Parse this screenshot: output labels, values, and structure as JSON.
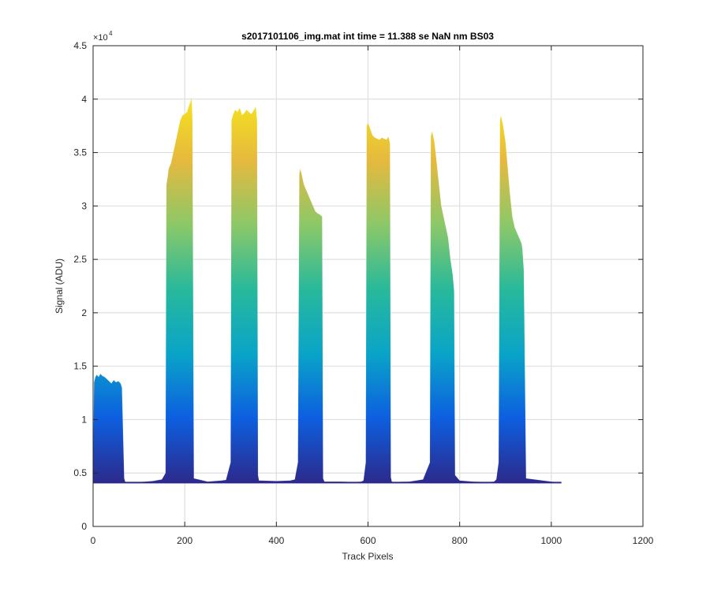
{
  "chart_data": {
    "type": "area",
    "title": "s2017101106_img.mat int time = 11.388 se  NaN nm BS03",
    "xlabel": "Track Pixels",
    "ylabel": "Signal (ADU)",
    "y_exponent_label": "×10",
    "y_exponent": "4",
    "xlim": [
      0,
      1200
    ],
    "ylim": [
      0,
      45000
    ],
    "x_ticks": [
      0,
      200,
      400,
      600,
      800,
      1000,
      1200
    ],
    "x_tick_labels": [
      "0",
      "200",
      "400",
      "600",
      "800",
      "1000",
      "1200"
    ],
    "y_ticks": [
      0,
      5000,
      10000,
      15000,
      20000,
      25000,
      30000,
      35000,
      40000,
      45000
    ],
    "y_tick_labels": [
      "0",
      "0.5",
      "1",
      "1.5",
      "2",
      "2.5",
      "3",
      "3.5",
      "4",
      "4.5"
    ],
    "grid": true,
    "colormap": [
      "#2c2a8c",
      "#0d5fe0",
      "#0aa4c8",
      "#28b99b",
      "#8cc868",
      "#e6b93e",
      "#f6e41c"
    ],
    "baseline_value": 4100,
    "x_end": 1022,
    "x_samples": [
      0,
      2,
      5,
      8,
      12,
      16,
      20,
      25,
      30,
      35,
      40,
      45,
      50,
      55,
      60,
      63,
      66,
      68,
      70,
      75,
      100,
      130,
      150,
      158,
      160,
      162,
      165,
      170,
      175,
      180,
      185,
      190,
      195,
      200,
      205,
      210,
      213,
      215,
      217,
      220,
      250,
      280,
      290,
      300,
      302,
      305,
      310,
      315,
      320,
      325,
      330,
      335,
      340,
      345,
      350,
      355,
      358,
      360,
      362,
      365,
      400,
      430,
      440,
      447,
      450,
      452,
      455,
      460,
      465,
      470,
      475,
      480,
      485,
      490,
      495,
      500,
      502,
      505,
      540,
      570,
      585,
      590,
      595,
      597,
      600,
      605,
      610,
      615,
      620,
      625,
      630,
      635,
      640,
      645,
      648,
      650,
      652,
      655,
      690,
      720,
      735,
      737,
      740,
      745,
      750,
      755,
      760,
      765,
      770,
      775,
      780,
      785,
      788,
      790,
      800,
      830,
      860,
      875,
      880,
      885,
      888,
      890,
      895,
      900,
      905,
      910,
      915,
      920,
      925,
      930,
      935,
      937,
      940,
      945,
      1000,
      1022
    ],
    "envelope_values": [
      6000,
      13500,
      14000,
      14200,
      14000,
      14300,
      14100,
      14000,
      13800,
      13600,
      13400,
      13700,
      13500,
      13600,
      13400,
      13000,
      8000,
      4500,
      4200,
      4100,
      4150,
      4250,
      4400,
      5000,
      32000,
      32500,
      33500,
      34000,
      35000,
      36000,
      37000,
      38000,
      38500,
      38600,
      38800,
      39500,
      39800,
      40200,
      38000,
      4500,
      4200,
      4300,
      4350,
      6000,
      38000,
      38500,
      39000,
      38800,
      39200,
      38500,
      38700,
      39000,
      38800,
      38600,
      38900,
      39300,
      38000,
      4800,
      4300,
      4300,
      4250,
      4300,
      4400,
      6000,
      33000,
      33500,
      33000,
      32000,
      31500,
      31000,
      30500,
      30000,
      29500,
      29300,
      29200,
      29000,
      4500,
      4200,
      4200,
      4150,
      4200,
      4300,
      6000,
      37500,
      37800,
      37200,
      36600,
      36400,
      36300,
      36200,
      36400,
      36300,
      36200,
      36500,
      35800,
      4600,
      4200,
      4150,
      4200,
      4400,
      6000,
      36500,
      37000,
      36000,
      34000,
      32000,
      30000,
      29000,
      28000,
      27000,
      25000,
      23500,
      22000,
      4800,
      4300,
      4200,
      4150,
      4200,
      4400,
      6000,
      38000,
      38500,
      37500,
      36000,
      33500,
      31000,
      29000,
      28000,
      27500,
      27000,
      26500,
      26000,
      24000,
      4500,
      4200,
      4100
    ]
  }
}
